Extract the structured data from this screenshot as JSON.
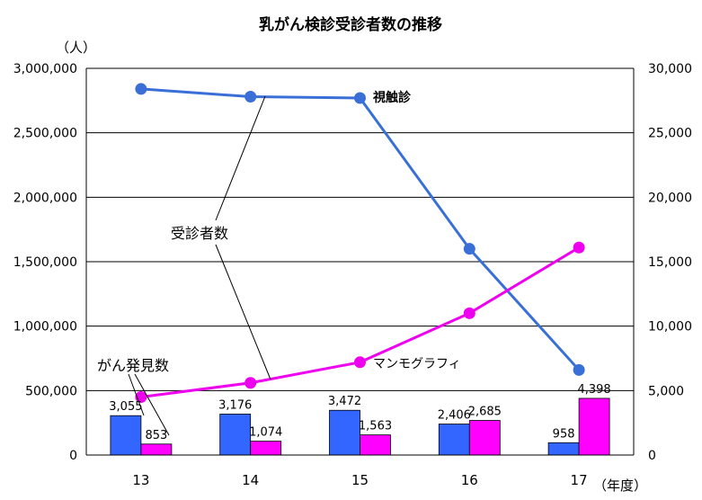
{
  "chart_data": {
    "type": "bar",
    "title": "乳がん検診受診者数の推移",
    "left_axis_unit": "（人）",
    "x_unit": "（年度）",
    "categories": [
      "13",
      "14",
      "15",
      "16",
      "17"
    ],
    "left_axis": {
      "ylim": [
        0,
        3000000
      ],
      "ticks": [
        "0",
        "500,000",
        "1,000,000",
        "1,500,000",
        "2,000,000",
        "2,500,000",
        "3,000,000"
      ]
    },
    "right_axis": {
      "ylim": [
        0,
        30000
      ],
      "ticks": [
        "0",
        "5,000",
        "10,000",
        "15,000",
        "20,000",
        "25,000",
        "30,000"
      ]
    },
    "grid": true,
    "line_series": [
      {
        "name": "視触診",
        "values": [
          2840000,
          2780000,
          2770000,
          1600000,
          660000
        ],
        "color": "#3a6fd8",
        "axis": "left"
      },
      {
        "name": "マンモグラフィ",
        "values": [
          450000,
          560000,
          720000,
          1100000,
          1610000
        ],
        "color": "#ee00ee",
        "axis": "left"
      }
    ],
    "bar_series": [
      {
        "name": "視触診",
        "values": [
          3055,
          3176,
          3472,
          2406,
          958
        ],
        "labels": [
          "3,055",
          "3,176",
          "3,472",
          "2,406",
          "958"
        ],
        "color": "#3366ff",
        "axis": "right"
      },
      {
        "name": "マンモグラフィ",
        "values": [
          853,
          1074,
          1563,
          2685,
          4398
        ],
        "labels": [
          "853",
          "1,074",
          "1,563",
          "2,685",
          "4,398"
        ],
        "color": "#ff00ff",
        "axis": "right"
      }
    ],
    "annotations": {
      "line_label": "受診者数",
      "bar_label": "がん発見数"
    }
  }
}
